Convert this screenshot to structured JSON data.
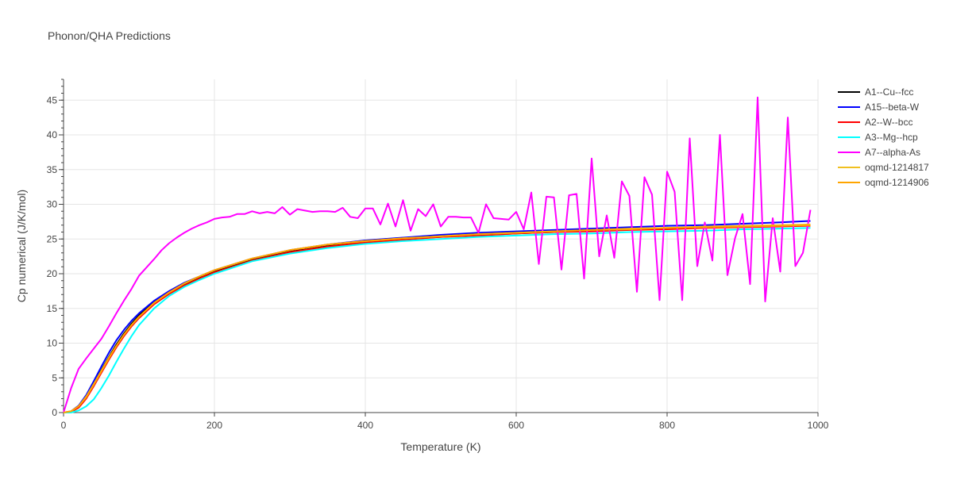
{
  "chart_data": {
    "type": "line",
    "title": "Phonon/QHA Predictions",
    "xlabel": "Temperature (K)",
    "ylabel": "Cp numerical (J/K/mol)",
    "xlim": [
      0,
      1000
    ],
    "ylim": [
      0,
      48
    ],
    "x_ticks": [
      0,
      200,
      400,
      600,
      800,
      1000
    ],
    "y_ticks": [
      0,
      5,
      10,
      15,
      20,
      25,
      30,
      35,
      40,
      45
    ],
    "grid": true,
    "legend_position": "top-right",
    "series": [
      {
        "name": "A1--Cu--fcc",
        "color": "#000000",
        "points": [
          [
            0,
            0
          ],
          [
            10,
            0.1
          ],
          [
            20,
            0.8
          ],
          [
            30,
            2.2
          ],
          [
            40,
            4.1
          ],
          [
            50,
            6.1
          ],
          [
            60,
            8.0
          ],
          [
            70,
            9.8
          ],
          [
            80,
            11.4
          ],
          [
            90,
            12.8
          ],
          [
            100,
            14.0
          ],
          [
            120,
            15.9
          ],
          [
            140,
            17.3
          ],
          [
            160,
            18.5
          ],
          [
            180,
            19.4
          ],
          [
            200,
            20.3
          ],
          [
            250,
            22.0
          ],
          [
            300,
            23.2
          ],
          [
            350,
            24.0
          ],
          [
            400,
            24.6
          ],
          [
            450,
            25.0
          ],
          [
            500,
            25.3
          ],
          [
            550,
            25.6
          ],
          [
            600,
            25.8
          ],
          [
            650,
            26.0
          ],
          [
            700,
            26.2
          ],
          [
            750,
            26.4
          ],
          [
            800,
            26.5
          ],
          [
            850,
            26.7
          ],
          [
            900,
            26.8
          ],
          [
            950,
            26.9
          ],
          [
            990,
            27.0
          ]
        ]
      },
      {
        "name": "A15--beta-W",
        "color": "#0000ff",
        "points": [
          [
            0,
            0
          ],
          [
            10,
            0.2
          ],
          [
            20,
            1.0
          ],
          [
            30,
            2.5
          ],
          [
            40,
            4.5
          ],
          [
            50,
            6.6
          ],
          [
            60,
            8.6
          ],
          [
            70,
            10.4
          ],
          [
            80,
            11.9
          ],
          [
            90,
            13.2
          ],
          [
            100,
            14.3
          ],
          [
            120,
            16.1
          ],
          [
            140,
            17.5
          ],
          [
            160,
            18.7
          ],
          [
            180,
            19.6
          ],
          [
            200,
            20.5
          ],
          [
            250,
            22.2
          ],
          [
            300,
            23.4
          ],
          [
            350,
            24.2
          ],
          [
            400,
            24.8
          ],
          [
            450,
            25.2
          ],
          [
            500,
            25.6
          ],
          [
            550,
            25.9
          ],
          [
            600,
            26.1
          ],
          [
            650,
            26.3
          ],
          [
            700,
            26.5
          ],
          [
            750,
            26.7
          ],
          [
            800,
            26.9
          ],
          [
            850,
            27.0
          ],
          [
            900,
            27.2
          ],
          [
            950,
            27.4
          ],
          [
            990,
            27.6
          ]
        ]
      },
      {
        "name": "A2--W--bcc",
        "color": "#ff0000",
        "points": [
          [
            0,
            0
          ],
          [
            10,
            0.1
          ],
          [
            20,
            0.7
          ],
          [
            30,
            2.0
          ],
          [
            40,
            3.8
          ],
          [
            50,
            5.7
          ],
          [
            60,
            7.6
          ],
          [
            70,
            9.4
          ],
          [
            80,
            11.0
          ],
          [
            90,
            12.4
          ],
          [
            100,
            13.6
          ],
          [
            120,
            15.6
          ],
          [
            140,
            17.1
          ],
          [
            160,
            18.3
          ],
          [
            180,
            19.3
          ],
          [
            200,
            20.2
          ],
          [
            250,
            21.9
          ],
          [
            300,
            23.1
          ],
          [
            350,
            23.9
          ],
          [
            400,
            24.5
          ],
          [
            450,
            24.9
          ],
          [
            500,
            25.3
          ],
          [
            550,
            25.5
          ],
          [
            600,
            25.8
          ],
          [
            650,
            26.0
          ],
          [
            700,
            26.1
          ],
          [
            750,
            26.3
          ],
          [
            800,
            26.4
          ],
          [
            850,
            26.6
          ],
          [
            900,
            26.7
          ],
          [
            950,
            26.8
          ],
          [
            990,
            26.9
          ]
        ]
      },
      {
        "name": "A3--Mg--hcp",
        "color": "#00ffff",
        "points": [
          [
            0,
            0
          ],
          [
            10,
            0.0
          ],
          [
            20,
            0.3
          ],
          [
            30,
            0.9
          ],
          [
            40,
            1.9
          ],
          [
            50,
            3.5
          ],
          [
            60,
            5.3
          ],
          [
            70,
            7.3
          ],
          [
            80,
            9.2
          ],
          [
            90,
            11.0
          ],
          [
            100,
            12.6
          ],
          [
            120,
            15.0
          ],
          [
            140,
            16.8
          ],
          [
            160,
            18.1
          ],
          [
            180,
            19.1
          ],
          [
            200,
            20.0
          ],
          [
            250,
            21.8
          ],
          [
            300,
            22.9
          ],
          [
            350,
            23.7
          ],
          [
            400,
            24.3
          ],
          [
            450,
            24.7
          ],
          [
            500,
            25.0
          ],
          [
            550,
            25.3
          ],
          [
            600,
            25.5
          ],
          [
            650,
            25.7
          ],
          [
            700,
            25.8
          ],
          [
            750,
            26.0
          ],
          [
            800,
            26.1
          ],
          [
            850,
            26.2
          ],
          [
            900,
            26.4
          ],
          [
            950,
            26.5
          ],
          [
            990,
            26.6
          ]
        ]
      },
      {
        "name": "A7--alpha-As",
        "color": "#ff00ff",
        "points": [
          [
            0,
            0
          ],
          [
            10,
            3.5
          ],
          [
            20,
            6.3
          ],
          [
            30,
            7.8
          ],
          [
            40,
            9.2
          ],
          [
            50,
            10.6
          ],
          [
            60,
            12.4
          ],
          [
            70,
            14.3
          ],
          [
            80,
            16.1
          ],
          [
            90,
            17.8
          ],
          [
            100,
            19.7
          ],
          [
            110,
            20.9
          ],
          [
            120,
            22.1
          ],
          [
            130,
            23.4
          ],
          [
            140,
            24.4
          ],
          [
            150,
            25.2
          ],
          [
            160,
            25.9
          ],
          [
            170,
            26.5
          ],
          [
            180,
            27.0
          ],
          [
            190,
            27.4
          ],
          [
            200,
            27.9
          ],
          [
            210,
            28.1
          ],
          [
            220,
            28.2
          ],
          [
            230,
            28.6
          ],
          [
            240,
            28.6
          ],
          [
            250,
            29.0
          ],
          [
            260,
            28.7
          ],
          [
            270,
            28.9
          ],
          [
            280,
            28.7
          ],
          [
            290,
            29.6
          ],
          [
            300,
            28.5
          ],
          [
            310,
            29.3
          ],
          [
            320,
            29.1
          ],
          [
            330,
            28.9
          ],
          [
            340,
            29.0
          ],
          [
            350,
            29.0
          ],
          [
            360,
            28.9
          ],
          [
            370,
            29.5
          ],
          [
            380,
            28.2
          ],
          [
            390,
            28.0
          ],
          [
            400,
            29.4
          ],
          [
            410,
            29.4
          ],
          [
            420,
            27.1
          ],
          [
            430,
            30.1
          ],
          [
            440,
            26.8
          ],
          [
            450,
            30.6
          ],
          [
            460,
            26.2
          ],
          [
            470,
            29.3
          ],
          [
            480,
            28.3
          ],
          [
            490,
            30.0
          ],
          [
            500,
            26.8
          ],
          [
            510,
            28.2
          ],
          [
            520,
            28.2
          ],
          [
            530,
            28.1
          ],
          [
            540,
            28.1
          ],
          [
            550,
            25.9
          ],
          [
            560,
            30.0
          ],
          [
            570,
            28.0
          ],
          [
            580,
            27.9
          ],
          [
            590,
            27.8
          ],
          [
            600,
            28.9
          ],
          [
            610,
            26.4
          ],
          [
            620,
            31.7
          ],
          [
            630,
            21.4
          ],
          [
            640,
            31.1
          ],
          [
            650,
            31.0
          ],
          [
            660,
            20.6
          ],
          [
            670,
            31.3
          ],
          [
            680,
            31.5
          ],
          [
            690,
            19.3
          ],
          [
            700,
            36.6
          ],
          [
            710,
            22.5
          ],
          [
            720,
            28.4
          ],
          [
            730,
            22.3
          ],
          [
            740,
            33.3
          ],
          [
            750,
            31.2
          ],
          [
            760,
            17.4
          ],
          [
            770,
            33.9
          ],
          [
            780,
            31.4
          ],
          [
            790,
            16.2
          ],
          [
            800,
            34.7
          ],
          [
            810,
            31.8
          ],
          [
            820,
            16.2
          ],
          [
            830,
            39.5
          ],
          [
            840,
            21.1
          ],
          [
            850,
            27.4
          ],
          [
            860,
            21.9
          ],
          [
            870,
            40.0
          ],
          [
            880,
            19.8
          ],
          [
            890,
            25.1
          ],
          [
            900,
            28.6
          ],
          [
            910,
            18.5
          ],
          [
            920,
            45.4
          ],
          [
            930,
            16.0
          ],
          [
            940,
            28.0
          ],
          [
            950,
            20.3
          ],
          [
            960,
            42.5
          ],
          [
            970,
            21.1
          ],
          [
            980,
            23.0
          ],
          [
            990,
            29.2
          ]
        ]
      },
      {
        "name": "oqmd-1214817",
        "color": "#f0c020",
        "points": [
          [
            0,
            0
          ],
          [
            10,
            0.2
          ],
          [
            20,
            0.9
          ],
          [
            30,
            2.3
          ],
          [
            40,
            4.1
          ],
          [
            50,
            6.0
          ],
          [
            60,
            7.9
          ],
          [
            70,
            9.6
          ],
          [
            80,
            11.2
          ],
          [
            90,
            12.6
          ],
          [
            100,
            13.8
          ],
          [
            120,
            15.8
          ],
          [
            140,
            17.3
          ],
          [
            160,
            18.6
          ],
          [
            180,
            19.6
          ],
          [
            200,
            20.5
          ],
          [
            250,
            22.2
          ],
          [
            300,
            23.4
          ],
          [
            350,
            24.2
          ],
          [
            400,
            24.7
          ],
          [
            450,
            25.1
          ],
          [
            500,
            25.4
          ],
          [
            550,
            25.7
          ],
          [
            600,
            25.9
          ],
          [
            650,
            26.1
          ],
          [
            700,
            26.3
          ],
          [
            750,
            26.5
          ],
          [
            800,
            26.6
          ],
          [
            850,
            26.8
          ],
          [
            900,
            26.9
          ],
          [
            950,
            27.0
          ],
          [
            990,
            27.1
          ]
        ]
      },
      {
        "name": "oqmd-1214906",
        "color": "#ffa500",
        "points": [
          [
            0,
            0
          ],
          [
            10,
            0.2
          ],
          [
            20,
            0.9
          ],
          [
            30,
            2.2
          ],
          [
            40,
            4.0
          ],
          [
            50,
            5.9
          ],
          [
            60,
            7.8
          ],
          [
            70,
            9.6
          ],
          [
            80,
            11.2
          ],
          [
            90,
            12.6
          ],
          [
            100,
            13.8
          ],
          [
            120,
            15.8
          ],
          [
            140,
            17.3
          ],
          [
            160,
            18.6
          ],
          [
            180,
            19.6
          ],
          [
            200,
            20.5
          ],
          [
            250,
            22.2
          ],
          [
            300,
            23.4
          ],
          [
            350,
            24.2
          ],
          [
            400,
            24.7
          ],
          [
            450,
            25.1
          ],
          [
            500,
            25.4
          ],
          [
            550,
            25.7
          ],
          [
            600,
            25.9
          ],
          [
            650,
            26.1
          ],
          [
            700,
            26.3
          ],
          [
            750,
            26.4
          ],
          [
            800,
            26.6
          ],
          [
            850,
            26.7
          ],
          [
            900,
            26.8
          ],
          [
            950,
            26.9
          ],
          [
            990,
            27.0
          ]
        ]
      }
    ]
  }
}
